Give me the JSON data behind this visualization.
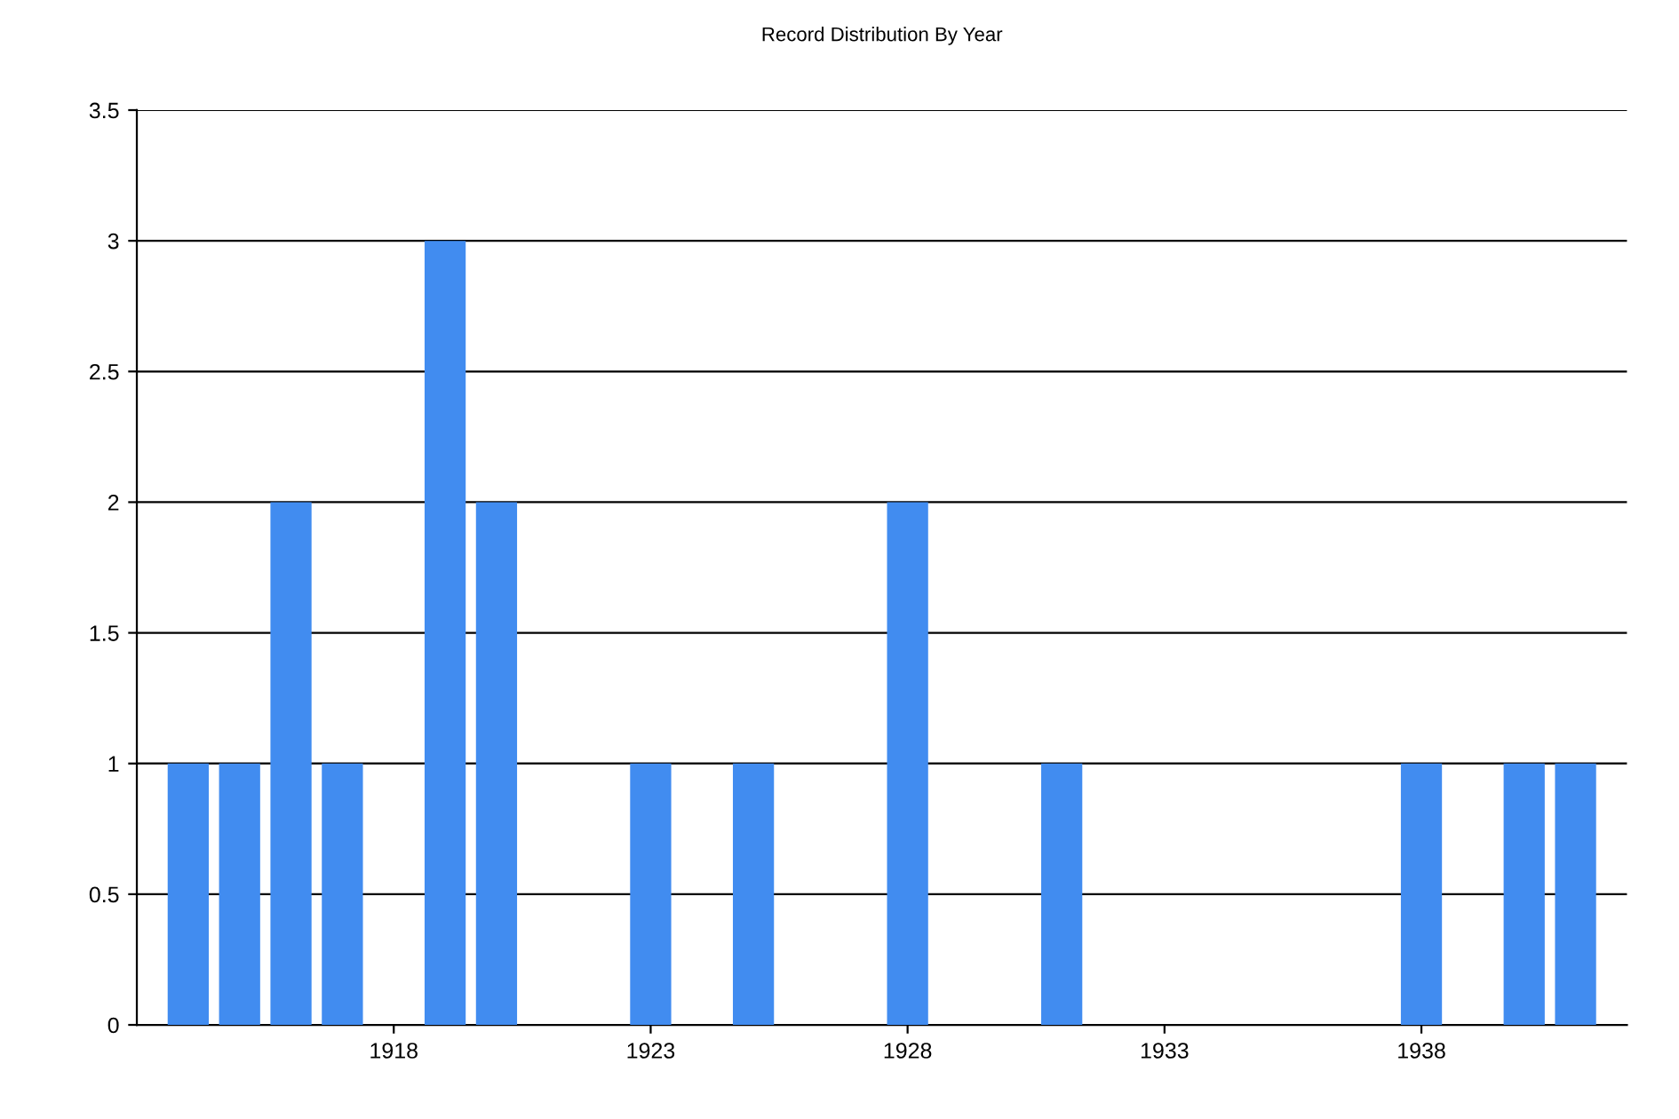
{
  "chart_data": {
    "type": "bar",
    "title": "Record Distribution By Year",
    "x": [
      1914,
      1915,
      1916,
      1917,
      1919,
      1920,
      1923,
      1925,
      1928,
      1931,
      1938,
      1940,
      1941
    ],
    "values": [
      1,
      1,
      2,
      1,
      3,
      2,
      1,
      1,
      2,
      1,
      1,
      1,
      1
    ],
    "color": "#418cf0",
    "xlim": [
      1913,
      1942
    ],
    "xticks": [
      1918,
      1923,
      1928,
      1933,
      1938
    ],
    "ylim": [
      0,
      3.5
    ],
    "yticks": [
      0,
      0.5,
      1,
      1.5,
      2,
      2.5,
      3,
      3.5
    ],
    "grid": "y",
    "legend": false
  }
}
